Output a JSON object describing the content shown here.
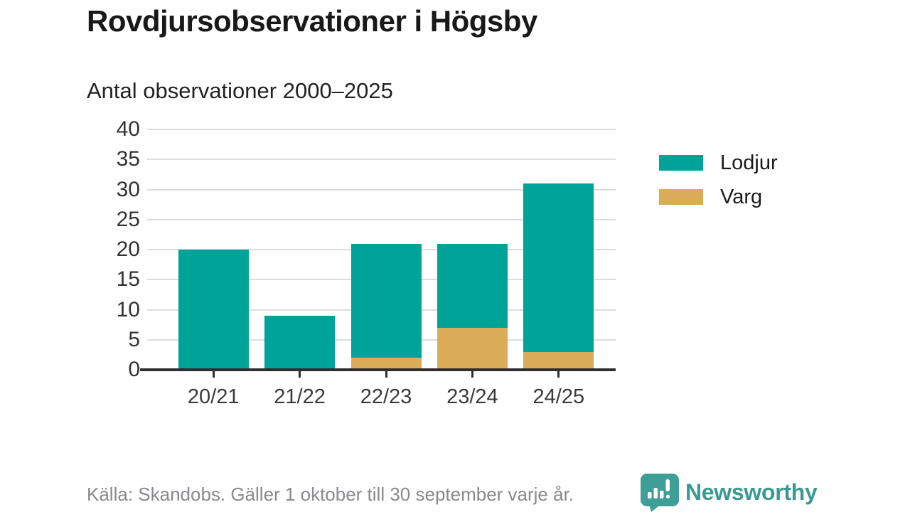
{
  "header": {
    "title": "Rovdjursobservationer i Högsby"
  },
  "chart_data": {
    "type": "bar",
    "stacked": true,
    "title": "Antal observationer 2000–2025",
    "categories": [
      "20/21",
      "21/22",
      "22/23",
      "23/24",
      "24/25"
    ],
    "series": [
      {
        "name": "Lodjur",
        "color": "#00a398",
        "values": [
          20,
          9,
          19,
          14,
          28
        ]
      },
      {
        "name": "Varg",
        "color": "#dbac58",
        "values": [
          0,
          0,
          2,
          7,
          3
        ]
      }
    ],
    "stack_bottom_to_top": [
      "Varg",
      "Lodjur"
    ],
    "totals": [
      20,
      9,
      21,
      21,
      31
    ],
    "xlabel": "",
    "ylabel": "",
    "ylim": [
      0,
      40
    ],
    "yticks": [
      0,
      5,
      10,
      15,
      20,
      25,
      30,
      35,
      40
    ],
    "grid": true,
    "legend_position": "right"
  },
  "footer": {
    "source": "Källa: Skandobs. Gäller 1 oktober till 30 september varje år.",
    "brand": "Newsworthy"
  },
  "colors": {
    "bar_teal": "#00a398",
    "bar_gold": "#dbac58",
    "grid": "#dcdcdc",
    "axis": "#2e2e2e",
    "logo_teal": "#3f9e96",
    "muted_text": "#87898c"
  }
}
